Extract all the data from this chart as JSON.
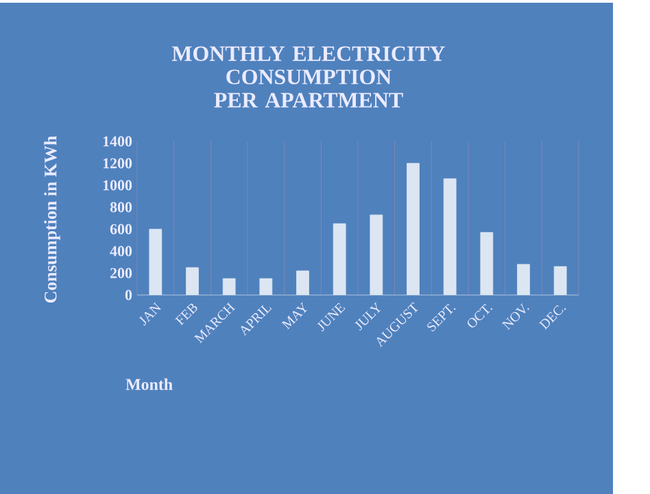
{
  "chart_data": {
    "type": "bar",
    "title": "MONTHLY ELECTRICITY CONSUMPTION PER APARTMENT",
    "xlabel": "Month",
    "ylabel": "Consumption in KWh",
    "categories": [
      "JAN",
      "FEB",
      "MARCH",
      "APRIL",
      "MAY",
      "JUNE",
      "JULY",
      "AUGUST",
      "SEPT.",
      "OCT.",
      "NOV.",
      "DEC."
    ],
    "values": [
      600,
      250,
      150,
      150,
      220,
      650,
      730,
      1200,
      1060,
      570,
      280,
      260
    ],
    "color": "#dce6f2",
    "ylim": [
      0,
      1400
    ],
    "yticks": [
      0,
      200,
      400,
      600,
      800,
      1000,
      1200,
      1400
    ],
    "grid": "x"
  }
}
